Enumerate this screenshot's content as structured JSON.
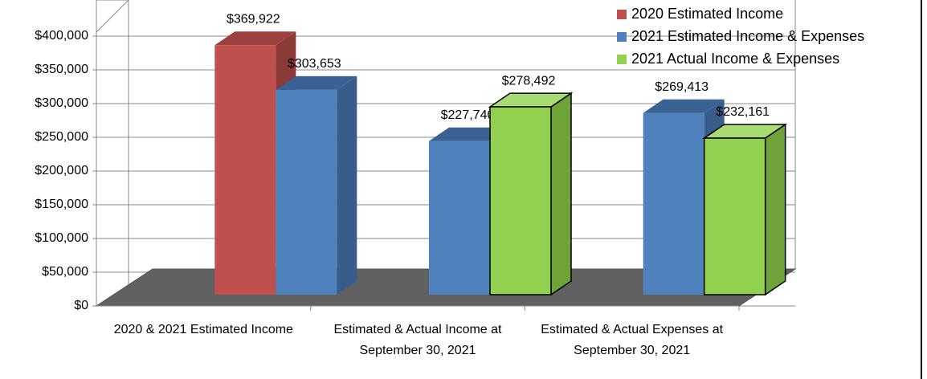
{
  "chart_data": {
    "type": "bar3d",
    "categories": [
      "2020 & 2021 Estimated Income",
      "Estimated & Actual Income at September 30, 2021",
      "Estimated & Actual Expenses at September 30, 2021"
    ],
    "series": [
      {
        "name": "2020 Estimated Income",
        "color": "#c0504d",
        "values": [
          369922,
          null,
          null
        ],
        "value_labels": [
          "$369,922",
          null,
          null
        ]
      },
      {
        "name": "2021 Estimated Income & Expenses",
        "color": "#4f81bd",
        "values": [
          303653,
          227740,
          269413
        ],
        "value_labels": [
          "$303,653",
          "$227,740",
          "$269,413"
        ]
      },
      {
        "name": "2021 Actual Income & Expenses",
        "color": "#92d050",
        "values": [
          null,
          278492,
          232161
        ],
        "value_labels": [
          null,
          "$278,492",
          "$232,161"
        ]
      }
    ],
    "ylim": [
      0,
      400000
    ],
    "yticks": [
      {
        "value": 0,
        "label": "$0"
      },
      {
        "value": 50000,
        "label": "$50,000"
      },
      {
        "value": 100000,
        "label": "$100,000"
      },
      {
        "value": 150000,
        "label": "$150,000"
      },
      {
        "value": 200000,
        "label": "$200,000"
      },
      {
        "value": 250000,
        "label": "$250,000"
      },
      {
        "value": 300000,
        "label": "$300,000"
      },
      {
        "value": 350000,
        "label": "$350,000"
      },
      {
        "value": 400000,
        "label": "$400,000"
      }
    ],
    "grid": true,
    "legend": "top-right"
  }
}
